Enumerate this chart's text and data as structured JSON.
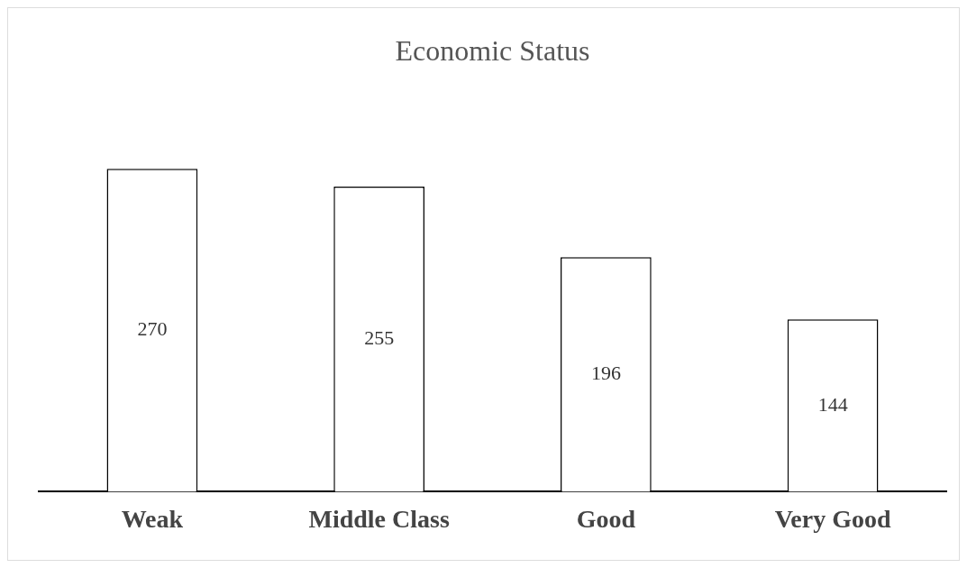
{
  "chart_data": {
    "type": "bar",
    "title": "Economic Status",
    "categories": [
      "Weak",
      "Middle Class",
      "Good",
      "Very Good"
    ],
    "values": [
      270,
      255,
      196,
      144
    ],
    "color": "#ffffff",
    "data_labels": true,
    "grid": false,
    "legend": false
  }
}
